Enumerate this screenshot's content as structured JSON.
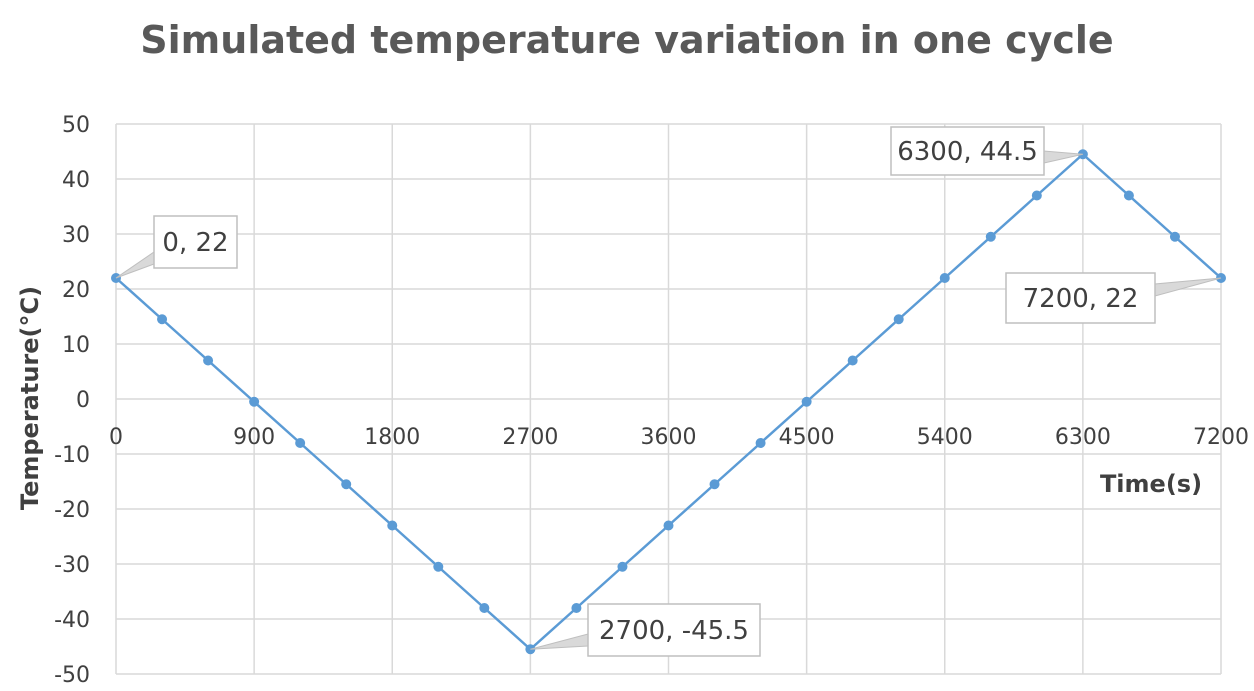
{
  "chart_data": {
    "type": "line",
    "title": "Simulated temperature variation in one cycle",
    "xlabel": "Time(s)",
    "ylabel": "Temperature(°C)",
    "xlim": [
      0,
      7200
    ],
    "ylim": [
      -50,
      50
    ],
    "x_ticks": [
      "0",
      "900",
      "1800",
      "2700",
      "3600",
      "4500",
      "5400",
      "6300",
      "7200"
    ],
    "y_ticks": [
      "50",
      "40",
      "30",
      "20",
      "10",
      "0",
      "-10",
      "-20",
      "-30",
      "-40",
      "-50"
    ],
    "grid": true,
    "legend": "none",
    "series_color": "#5b9bd5",
    "series": [
      {
        "x": [
          0,
          300,
          600,
          900,
          1200,
          1500,
          1800,
          2100,
          2400,
          2700,
          3000,
          3300,
          3600,
          3900,
          4200,
          4500,
          4800,
          5100,
          5400,
          5700,
          6000,
          6300,
          6600,
          6900,
          7200
        ],
        "y": [
          22,
          14.5,
          7,
          -0.5,
          -8,
          -15.5,
          -23,
          -30.5,
          -38,
          -45.5,
          -38,
          -30.5,
          -23,
          -15.5,
          -8,
          -0.5,
          7,
          14.5,
          22,
          29.5,
          37,
          44.5,
          37,
          29.5,
          22
        ]
      }
    ],
    "annotations": [
      {
        "text": "0, 22",
        "x": 0,
        "y": 22
      },
      {
        "text": "2700, -45.5",
        "x": 2700,
        "y": -45.5
      },
      {
        "text": "6300, 44.5",
        "x": 6300,
        "y": 44.5
      },
      {
        "text": "7200, 22",
        "x": 7200,
        "y": 22
      }
    ]
  }
}
